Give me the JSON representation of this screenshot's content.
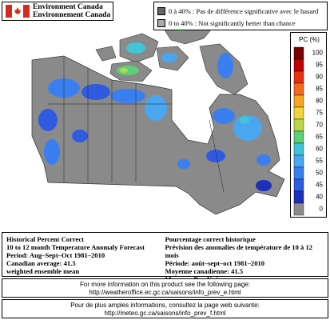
{
  "header": {
    "agency_en": "Environment Canada",
    "agency_fr": "Environnement Canada"
  },
  "legend_notes": [
    "0 à 40% : Pas de différence significative avec le hasard",
    "0 to 40% : Not significantly better than chance"
  ],
  "colorbar": {
    "title": "PC (%)",
    "levels": [
      {
        "value": 100,
        "color": "#7a0000"
      },
      {
        "value": 95,
        "color": "#c00000"
      },
      {
        "value": 90,
        "color": "#e8300f"
      },
      {
        "value": 85,
        "color": "#f26a1b"
      },
      {
        "value": 80,
        "color": "#f5a623"
      },
      {
        "value": 75,
        "color": "#f2d43a"
      },
      {
        "value": 70,
        "color": "#b6d84a"
      },
      {
        "value": 65,
        "color": "#5ccf7a"
      },
      {
        "value": 60,
        "color": "#3fc5d6"
      },
      {
        "value": 55,
        "color": "#4aa6f0"
      },
      {
        "value": 50,
        "color": "#3a7ff0"
      },
      {
        "value": 45,
        "color": "#2f5be0"
      },
      {
        "value": 40,
        "color": "#1e2fb8"
      },
      {
        "value": 0,
        "color": "#8c8c8c"
      }
    ]
  },
  "info": {
    "en": [
      "Historical Percent Correct",
      "10 to 12 month Temperature Anomaly Forecast",
      "Period: Aug–Sept–Oct 1981–2010",
      "Canadian average: 41.5",
      "weighted ensemble mean"
    ],
    "fr": [
      "Pourcentage correct historique",
      "Prévision des anomalies de température de 10 à 12 mois",
      "Période: août–sept–oct 1981–2010",
      "Moyenne canadienne: 41.5",
      "Moyenne Pondéré"
    ]
  },
  "footer_en": [
    "For more information on this product see the following page:",
    "http://weatheroffice.ec.gc.ca/saisons/info_prev_e.html"
  ],
  "footer_fr": [
    "Pour de plus amples informations, consultez la page web suivante:",
    "http://meteo.gc.ca/saisons/info_prev_f.html"
  ]
}
